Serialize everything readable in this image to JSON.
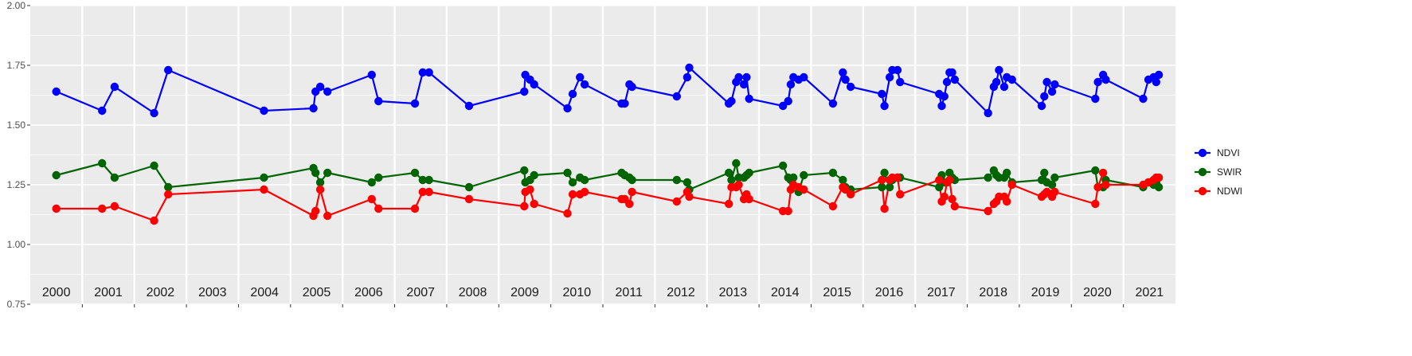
{
  "chart_data": {
    "type": "line",
    "title": "",
    "xlabel": "",
    "ylabel": "",
    "ylim": [
      0.75,
      2.0
    ],
    "yticks": [
      "0.75",
      "1.00",
      "1.25",
      "1.50",
      "1.75",
      "2.00"
    ],
    "xlim": [
      2000,
      2021.5
    ],
    "year_labels": [
      "2000",
      "2001",
      "2002",
      "2003",
      "2004",
      "2005",
      "2006",
      "2007",
      "2008",
      "2009",
      "2010",
      "2011",
      "2012",
      "2013",
      "2014",
      "2015",
      "2016",
      "2017",
      "2018",
      "2019",
      "2020",
      "2021"
    ],
    "grid": true,
    "legend_position": "right",
    "series": [
      {
        "name": "NDVI",
        "color": "#0000ff",
        "points": [
          [
            2000.0,
            1.64
          ],
          [
            2000.88,
            1.56
          ],
          [
            2001.12,
            1.66
          ],
          [
            2001.88,
            1.55
          ],
          [
            2002.15,
            1.73
          ],
          [
            2003.99,
            1.56
          ],
          [
            2004.94,
            1.57
          ],
          [
            2004.98,
            1.64
          ],
          [
            2005.07,
            1.66
          ],
          [
            2005.21,
            1.64
          ],
          [
            2006.06,
            1.71
          ],
          [
            2006.19,
            1.6
          ],
          [
            2006.89,
            1.59
          ],
          [
            2007.04,
            1.72
          ],
          [
            2007.16,
            1.72
          ],
          [
            2007.93,
            1.58
          ],
          [
            2008.99,
            1.64
          ],
          [
            2009.01,
            1.71
          ],
          [
            2009.1,
            1.69
          ],
          [
            2009.18,
            1.67
          ],
          [
            2009.82,
            1.57
          ],
          [
            2009.92,
            1.63
          ],
          [
            2010.06,
            1.7
          ],
          [
            2010.15,
            1.67
          ],
          [
            2010.86,
            1.59
          ],
          [
            2010.92,
            1.59
          ],
          [
            2011.01,
            1.67
          ],
          [
            2011.06,
            1.66
          ],
          [
            2011.92,
            1.62
          ],
          [
            2012.12,
            1.7
          ],
          [
            2012.16,
            1.74
          ],
          [
            2012.92,
            1.59
          ],
          [
            2012.97,
            1.6
          ],
          [
            2013.06,
            1.68
          ],
          [
            2013.11,
            1.7
          ],
          [
            2013.21,
            1.67
          ],
          [
            2013.26,
            1.7
          ],
          [
            2013.31,
            1.61
          ],
          [
            2013.96,
            1.58
          ],
          [
            2014.06,
            1.6
          ],
          [
            2014.11,
            1.67
          ],
          [
            2014.16,
            1.7
          ],
          [
            2014.26,
            1.69
          ],
          [
            2014.36,
            1.7
          ],
          [
            2014.92,
            1.59
          ],
          [
            2015.11,
            1.72
          ],
          [
            2015.16,
            1.69
          ],
          [
            2015.26,
            1.66
          ],
          [
            2015.86,
            1.63
          ],
          [
            2015.91,
            1.58
          ],
          [
            2016.01,
            1.7
          ],
          [
            2016.06,
            1.73
          ],
          [
            2016.16,
            1.73
          ],
          [
            2016.21,
            1.68
          ],
          [
            2016.96,
            1.63
          ],
          [
            2017.01,
            1.58
          ],
          [
            2017.06,
            1.62
          ],
          [
            2017.11,
            1.68
          ],
          [
            2017.16,
            1.72
          ],
          [
            2017.21,
            1.72
          ],
          [
            2017.26,
            1.69
          ],
          [
            2017.9,
            1.55
          ],
          [
            2018.01,
            1.66
          ],
          [
            2018.06,
            1.68
          ],
          [
            2018.11,
            1.73
          ],
          [
            2018.21,
            1.66
          ],
          [
            2018.26,
            1.7
          ],
          [
            2018.36,
            1.69
          ],
          [
            2018.93,
            1.58
          ],
          [
            2018.98,
            1.62
          ],
          [
            2019.03,
            1.68
          ],
          [
            2019.13,
            1.64
          ],
          [
            2019.18,
            1.67
          ],
          [
            2019.96,
            1.61
          ],
          [
            2020.01,
            1.68
          ],
          [
            2020.11,
            1.71
          ],
          [
            2020.16,
            1.69
          ],
          [
            2020.88,
            1.61
          ],
          [
            2020.98,
            1.69
          ],
          [
            2021.08,
            1.7
          ],
          [
            2021.13,
            1.68
          ],
          [
            2021.18,
            1.71
          ]
        ]
      },
      {
        "name": "SWIR",
        "color": "#006400",
        "points": [
          [
            2000.0,
            1.29
          ],
          [
            2000.88,
            1.34
          ],
          [
            2001.12,
            1.28
          ],
          [
            2001.88,
            1.33
          ],
          [
            2002.15,
            1.24
          ],
          [
            2003.99,
            1.28
          ],
          [
            2004.94,
            1.32
          ],
          [
            2004.98,
            1.3
          ],
          [
            2005.07,
            1.26
          ],
          [
            2005.21,
            1.3
          ],
          [
            2006.06,
            1.26
          ],
          [
            2006.19,
            1.28
          ],
          [
            2006.89,
            1.3
          ],
          [
            2007.04,
            1.27
          ],
          [
            2007.16,
            1.27
          ],
          [
            2007.93,
            1.24
          ],
          [
            2008.99,
            1.31
          ],
          [
            2009.01,
            1.26
          ],
          [
            2009.1,
            1.27
          ],
          [
            2009.18,
            1.29
          ],
          [
            2009.82,
            1.3
          ],
          [
            2009.92,
            1.26
          ],
          [
            2010.06,
            1.28
          ],
          [
            2010.15,
            1.27
          ],
          [
            2010.86,
            1.3
          ],
          [
            2010.92,
            1.29
          ],
          [
            2011.01,
            1.28
          ],
          [
            2011.06,
            1.27
          ],
          [
            2011.92,
            1.27
          ],
          [
            2012.12,
            1.26
          ],
          [
            2012.16,
            1.23
          ],
          [
            2012.92,
            1.3
          ],
          [
            2012.97,
            1.27
          ],
          [
            2013.06,
            1.34
          ],
          [
            2013.11,
            1.28
          ],
          [
            2013.21,
            1.28
          ],
          [
            2013.26,
            1.29
          ],
          [
            2013.31,
            1.3
          ],
          [
            2013.96,
            1.33
          ],
          [
            2014.06,
            1.28
          ],
          [
            2014.11,
            1.27
          ],
          [
            2014.16,
            1.28
          ],
          [
            2014.26,
            1.22
          ],
          [
            2014.36,
            1.29
          ],
          [
            2014.92,
            1.3
          ],
          [
            2015.11,
            1.27
          ],
          [
            2015.16,
            1.24
          ],
          [
            2015.26,
            1.23
          ],
          [
            2015.86,
            1.24
          ],
          [
            2015.91,
            1.3
          ],
          [
            2016.01,
            1.24
          ],
          [
            2016.06,
            1.27
          ],
          [
            2016.16,
            1.28
          ],
          [
            2016.21,
            1.28
          ],
          [
            2016.96,
            1.24
          ],
          [
            2017.01,
            1.29
          ],
          [
            2017.06,
            1.26
          ],
          [
            2017.11,
            1.26
          ],
          [
            2017.16,
            1.3
          ],
          [
            2017.21,
            1.28
          ],
          [
            2017.26,
            1.27
          ],
          [
            2017.9,
            1.28
          ],
          [
            2018.01,
            1.31
          ],
          [
            2018.06,
            1.29
          ],
          [
            2018.11,
            1.28
          ],
          [
            2018.21,
            1.28
          ],
          [
            2018.26,
            1.3
          ],
          [
            2018.36,
            1.26
          ],
          [
            2018.93,
            1.27
          ],
          [
            2018.98,
            1.3
          ],
          [
            2019.03,
            1.26
          ],
          [
            2019.13,
            1.25
          ],
          [
            2019.18,
            1.28
          ],
          [
            2019.96,
            1.31
          ],
          [
            2020.01,
            1.24
          ],
          [
            2020.11,
            1.24
          ],
          [
            2020.16,
            1.27
          ],
          [
            2020.88,
            1.24
          ],
          [
            2020.98,
            1.26
          ],
          [
            2021.08,
            1.25
          ],
          [
            2021.13,
            1.26
          ],
          [
            2021.18,
            1.24
          ]
        ]
      },
      {
        "name": "NDWI",
        "color": "#ff0000",
        "points": [
          [
            2000.0,
            1.15
          ],
          [
            2000.88,
            1.15
          ],
          [
            2001.12,
            1.16
          ],
          [
            2001.88,
            1.1
          ],
          [
            2002.15,
            1.21
          ],
          [
            2003.99,
            1.23
          ],
          [
            2004.94,
            1.12
          ],
          [
            2004.98,
            1.14
          ],
          [
            2005.07,
            1.23
          ],
          [
            2005.21,
            1.12
          ],
          [
            2006.06,
            1.19
          ],
          [
            2006.19,
            1.15
          ],
          [
            2006.89,
            1.15
          ],
          [
            2007.04,
            1.22
          ],
          [
            2007.16,
            1.22
          ],
          [
            2007.93,
            1.19
          ],
          [
            2008.99,
            1.16
          ],
          [
            2009.01,
            1.22
          ],
          [
            2009.1,
            1.23
          ],
          [
            2009.18,
            1.17
          ],
          [
            2009.82,
            1.13
          ],
          [
            2009.92,
            1.21
          ],
          [
            2010.06,
            1.21
          ],
          [
            2010.15,
            1.22
          ],
          [
            2010.86,
            1.19
          ],
          [
            2010.92,
            1.19
          ],
          [
            2011.01,
            1.17
          ],
          [
            2011.06,
            1.22
          ],
          [
            2011.92,
            1.18
          ],
          [
            2012.12,
            1.22
          ],
          [
            2012.16,
            1.2
          ],
          [
            2012.92,
            1.17
          ],
          [
            2012.97,
            1.24
          ],
          [
            2013.06,
            1.24
          ],
          [
            2013.11,
            1.25
          ],
          [
            2013.21,
            1.19
          ],
          [
            2013.26,
            1.21
          ],
          [
            2013.31,
            1.19
          ],
          [
            2013.96,
            1.14
          ],
          [
            2014.06,
            1.14
          ],
          [
            2014.11,
            1.23
          ],
          [
            2014.16,
            1.25
          ],
          [
            2014.26,
            1.24
          ],
          [
            2014.36,
            1.23
          ],
          [
            2014.92,
            1.16
          ],
          [
            2015.11,
            1.24
          ],
          [
            2015.16,
            1.23
          ],
          [
            2015.26,
            1.21
          ],
          [
            2015.86,
            1.27
          ],
          [
            2015.91,
            1.15
          ],
          [
            2016.01,
            1.27
          ],
          [
            2016.06,
            1.28
          ],
          [
            2016.16,
            1.28
          ],
          [
            2016.21,
            1.21
          ],
          [
            2016.96,
            1.27
          ],
          [
            2017.01,
            1.18
          ],
          [
            2017.06,
            1.2
          ],
          [
            2017.11,
            1.26
          ],
          [
            2017.16,
            1.27
          ],
          [
            2017.21,
            1.19
          ],
          [
            2017.26,
            1.16
          ],
          [
            2017.9,
            1.14
          ],
          [
            2018.01,
            1.17
          ],
          [
            2018.06,
            1.18
          ],
          [
            2018.11,
            1.2
          ],
          [
            2018.21,
            1.2
          ],
          [
            2018.26,
            1.18
          ],
          [
            2018.36,
            1.25
          ],
          [
            2018.93,
            1.2
          ],
          [
            2018.98,
            1.21
          ],
          [
            2019.03,
            1.22
          ],
          [
            2019.13,
            1.2
          ],
          [
            2019.18,
            1.22
          ],
          [
            2019.96,
            1.17
          ],
          [
            2020.01,
            1.24
          ],
          [
            2020.11,
            1.3
          ],
          [
            2020.16,
            1.25
          ],
          [
            2020.88,
            1.25
          ],
          [
            2020.98,
            1.26
          ],
          [
            2021.08,
            1.27
          ],
          [
            2021.13,
            1.28
          ],
          [
            2021.18,
            1.28
          ]
        ]
      }
    ]
  }
}
